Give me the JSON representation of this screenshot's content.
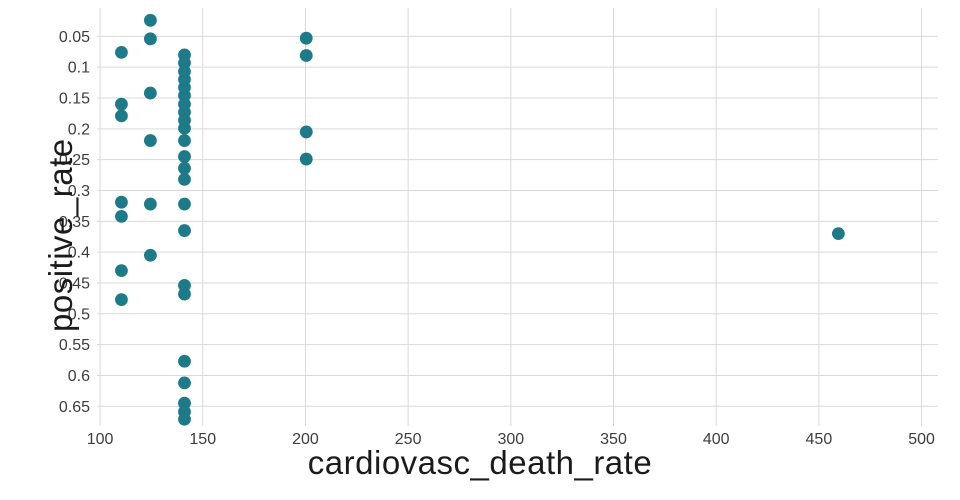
{
  "chart_data": {
    "type": "scatter",
    "title": "",
    "xlabel": "cardiovasc_death_rate",
    "ylabel": "positive_rate",
    "x_ticks": [
      100,
      150,
      200,
      250,
      300,
      350,
      400,
      450,
      500
    ],
    "y_ticks": [
      0.05,
      0.1,
      0.15,
      0.2,
      0.25,
      0.3,
      0.35,
      0.4,
      0.45,
      0.5,
      0.55,
      0.6,
      0.65
    ],
    "y_axis_inverted": true,
    "xlim": [
      98.5,
      508
    ],
    "ylim": [
      0.004,
      0.682
    ],
    "grid": true,
    "legend": "none",
    "marker_color": "#1d7b89",
    "grid_color": "#d9d9d9",
    "tick_color": "#3d3d3d",
    "title_color": "#1b1b1b",
    "points": [
      [
        110.4,
        0.076
      ],
      [
        110.4,
        0.16
      ],
      [
        110.4,
        0.179
      ],
      [
        110.4,
        0.319
      ],
      [
        110.4,
        0.342
      ],
      [
        110.4,
        0.43
      ],
      [
        110.4,
        0.477
      ],
      [
        124.5,
        0.024
      ],
      [
        124.5,
        0.054
      ],
      [
        124.5,
        0.142
      ],
      [
        124.5,
        0.219
      ],
      [
        124.5,
        0.322
      ],
      [
        124.5,
        0.405
      ],
      [
        141.1,
        0.08
      ],
      [
        141.1,
        0.093
      ],
      [
        141.1,
        0.107
      ],
      [
        141.1,
        0.12
      ],
      [
        141.1,
        0.133
      ],
      [
        141.1,
        0.146
      ],
      [
        141.1,
        0.16
      ],
      [
        141.1,
        0.173
      ],
      [
        141.1,
        0.186
      ],
      [
        141.1,
        0.199
      ],
      [
        141.1,
        0.219
      ],
      [
        141.1,
        0.245
      ],
      [
        141.1,
        0.264
      ],
      [
        141.1,
        0.282
      ],
      [
        141.1,
        0.322
      ],
      [
        141.1,
        0.365
      ],
      [
        141.1,
        0.454
      ],
      [
        141.1,
        0.468
      ],
      [
        141.1,
        0.577
      ],
      [
        141.1,
        0.612
      ],
      [
        141.1,
        0.645
      ],
      [
        141.1,
        0.659
      ],
      [
        141.1,
        0.671
      ],
      [
        200.4,
        0.053
      ],
      [
        200.4,
        0.081
      ],
      [
        200.4,
        0.205
      ],
      [
        200.4,
        0.249
      ],
      [
        459.5,
        0.37
      ]
    ]
  }
}
